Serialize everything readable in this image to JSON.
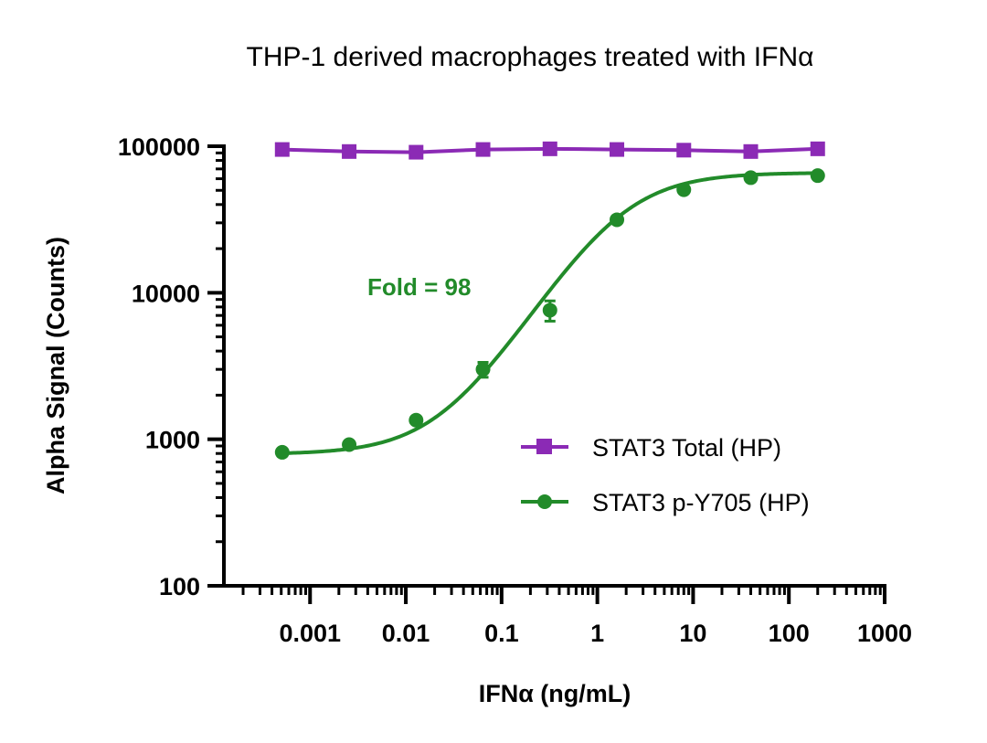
{
  "chart_data": {
    "type": "line",
    "title": "THP-1 derived macrophages treated with IFNα",
    "xlabel": "IFNα (ng/mL)",
    "ylabel": "Alpha Signal (Counts)",
    "xscale": "log",
    "yscale": "log",
    "xlim": [
      0.000126,
      1000
    ],
    "ylim": [
      100,
      100000
    ],
    "x_ticks": [
      0.001,
      0.01,
      0.1,
      1,
      10,
      100,
      1000
    ],
    "x_tick_labels": [
      "0.001",
      "0.01",
      "0.1",
      "1",
      "10",
      "100",
      "1000"
    ],
    "y_ticks": [
      100,
      1000,
      10000,
      100000
    ],
    "y_tick_labels": [
      "100",
      "1000",
      "10000",
      "100000"
    ],
    "x": [
      0.000512,
      0.00256,
      0.0128,
      0.064,
      0.32,
      1.6,
      8,
      40,
      200
    ],
    "series": [
      {
        "name": "STAT3 Total (HP)",
        "color": "#8b2ab5",
        "marker": "square",
        "connect": "lines",
        "values": [
          95000,
          92000,
          91000,
          95000,
          96000,
          95000,
          94000,
          92000,
          96000
        ]
      },
      {
        "name": "STAT3 p-Y705 (HP)",
        "color": "#228b2a",
        "marker": "circle",
        "connect": "4PL fit",
        "values": [
          815,
          920,
          1350,
          3000,
          7600,
          31500,
          50500,
          61000,
          63000
        ],
        "errors": [
          0,
          0,
          0,
          350,
          1200,
          0,
          0,
          0,
          0
        ],
        "fit": {
          "bottom": 790,
          "top": 66000,
          "ec50": 1.7,
          "hill": 1.05
        }
      }
    ],
    "annotations": [
      {
        "text": "Fold = 98",
        "color": "#228b2a"
      }
    ],
    "legend": "center-right",
    "grid": false
  }
}
